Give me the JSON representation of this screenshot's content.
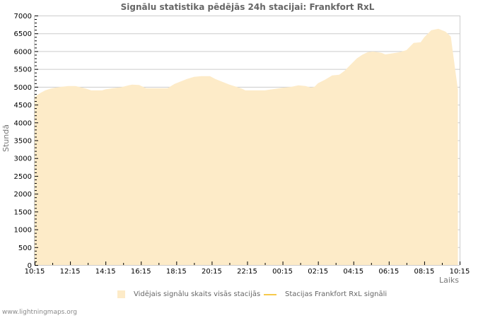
{
  "chart_data": {
    "type": "area",
    "title": "Signālu statistika pēdējās 24h stacijai: Frankfort RxL",
    "xlabel": "Laiks",
    "ylabel": "Stundā",
    "ylim": [
      0,
      7000
    ],
    "yticks": [
      0,
      500,
      1000,
      1500,
      2000,
      2500,
      3000,
      3500,
      4000,
      4500,
      5000,
      5500,
      6000,
      6500,
      7000
    ],
    "xticks": [
      "10:15",
      "12:15",
      "14:15",
      "16:15",
      "18:15",
      "20:15",
      "22:15",
      "00:15",
      "02:15",
      "04:15",
      "06:15",
      "08:15",
      "10:15"
    ],
    "grid": true,
    "legend_position": "bottom",
    "series": [
      {
        "name": "Vidējais signālu skaits visās stacijās",
        "style": "area",
        "color": "#fdebc8",
        "x_hours_from_start": [
          0,
          0.3,
          0.6,
          0.9,
          1.2,
          1.5,
          1.9,
          2.3,
          2.5,
          2.9,
          3.2,
          3.5,
          3.8,
          4.0,
          4.4,
          4.9,
          5.3,
          5.5,
          5.9,
          6.3,
          6.8,
          7.2,
          7.5,
          7.9,
          8.3,
          8.6,
          9.0,
          9.4,
          9.9,
          10.2,
          10.6,
          11.0,
          11.4,
          11.7,
          11.9,
          12.1,
          12.5,
          13.0,
          13.4,
          13.8,
          14.1,
          14.5,
          14.7,
          14.9,
          15.3,
          15.6,
          15.8,
          16.0,
          16.4,
          16.8,
          17.2,
          17.5,
          17.8,
          18.2,
          18.5,
          18.8,
          19.1,
          19.4,
          19.6,
          19.8,
          20.2,
          20.6,
          21.0,
          21.4,
          21.8,
          22.0,
          22.4,
          22.8,
          23.2,
          23.5,
          23.9
        ],
        "values": [
          4720,
          4820,
          4900,
          4950,
          4980,
          5000,
          5020,
          5020,
          5000,
          4950,
          4900,
          4900,
          4900,
          4930,
          4960,
          4990,
          5040,
          5060,
          5050,
          4960,
          4960,
          4960,
          4960,
          5080,
          5160,
          5220,
          5280,
          5300,
          5300,
          5220,
          5140,
          5060,
          5000,
          4950,
          4900,
          4900,
          4900,
          4900,
          4930,
          4960,
          4980,
          5000,
          5020,
          5040,
          5020,
          4980,
          5000,
          5100,
          5200,
          5320,
          5340,
          5450,
          5600,
          5800,
          5900,
          5970,
          5990,
          5970,
          5950,
          5910,
          5940,
          5970,
          6030,
          6230,
          6250,
          6390,
          6590,
          6630,
          6550,
          6410,
          4920
        ],
        "values_note": "read approximately from pixels; endpoint trends down to ~4920 at 10:15"
      },
      {
        "name": "Stacijas Frankfort RxL signāli",
        "style": "line",
        "color": "#f6c94a",
        "values": []
      }
    ]
  },
  "header": {
    "title": "Signālu statistika pēdējās 24h stacijai: Frankfort RxL"
  },
  "axes": {
    "ylabel": "Stundā",
    "xlabel": "Laiks"
  },
  "legend": {
    "items": [
      {
        "label": "Vidējais signālu skaits visās stacijās",
        "color": "#fdebc8",
        "kind": "area-swatch"
      },
      {
        "label": "Stacijas Frankfort RxL signāli",
        "color": "#f6c94a",
        "kind": "line-swatch"
      }
    ]
  },
  "footer": {
    "credit": "www.lightningmaps.org"
  },
  "colors": {
    "area_fill": "#fdebc8",
    "line": "#f6c94a",
    "grid": "#cccccc",
    "axis": "#cccccc",
    "text": "#666666"
  }
}
